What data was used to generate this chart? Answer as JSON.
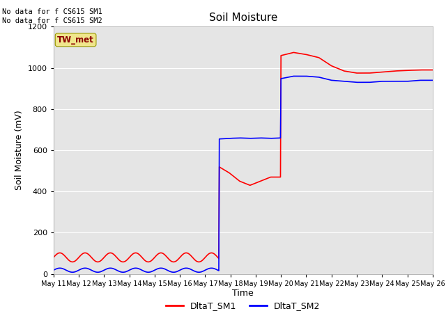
{
  "title": "Soil Moisture",
  "xlabel": "Time",
  "ylabel": "Soil Moisture (mV)",
  "ylim": [
    0,
    1200
  ],
  "yticks": [
    0,
    200,
    400,
    600,
    800,
    1000,
    1200
  ],
  "bg_color": "#e5e5e5",
  "note_line1": "No data for f CS615 SM1",
  "note_line2": "No data for f CS615 SM2",
  "box_label": "TW_met",
  "legend_entries": [
    "DltaT_SM1",
    "DltaT_SM2"
  ],
  "sm1_color": "red",
  "sm2_color": "blue",
  "linewidth": 1.2,
  "x_tick_labels": [
    "May 11",
    "May 12",
    "May 13",
    "May 14",
    "May 15",
    "May 16",
    "May 17",
    "May 18",
    "May 19",
    "May 20",
    "May 21",
    "May 22",
    "May 23",
    "May 24",
    "May 25",
    "May 26"
  ],
  "total_days": 15,
  "jump1_day": 6.55,
  "jump2_day": 9.0,
  "sm1_phase1_base": 80,
  "sm1_phase1_amp": 22,
  "sm1_phase1_period": 1.0,
  "sm2_phase1_base": 18,
  "sm2_phase1_amp": 10,
  "sm2_phase1_period": 1.0,
  "sm1_phase2": [
    520,
    490,
    450,
    430,
    450,
    470,
    470
  ],
  "sm2_phase2": [
    655,
    658,
    660,
    658,
    660,
    658,
    660
  ],
  "sm1_phase3": [
    1060,
    1075,
    1065,
    1050,
    1010,
    985,
    975,
    975,
    980,
    985,
    988,
    990,
    990
  ],
  "sm2_phase3": [
    948,
    960,
    960,
    955,
    940,
    935,
    930,
    930,
    935,
    935,
    935,
    940,
    940
  ]
}
